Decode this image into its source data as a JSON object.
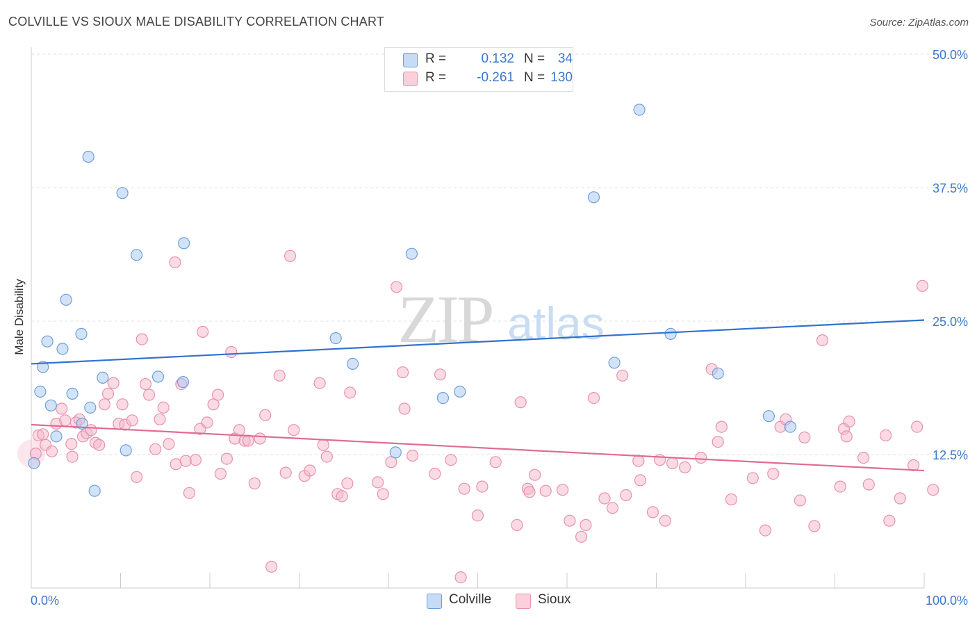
{
  "header": {
    "title": "COLVILLE VS SIOUX MALE DISABILITY CORRELATION CHART",
    "source": "Source: ZipAtlas.com"
  },
  "watermark": {
    "zip": "ZIP",
    "atlas": "atlas"
  },
  "legend": {
    "r_label": "R =",
    "n_label": "N =",
    "rows": [
      {
        "r": "0.132",
        "n": "34",
        "color": "#a8c8f0"
      },
      {
        "r": "-0.261",
        "n": "130",
        "color": "#f5b8ca"
      }
    ]
  },
  "bottom_legend": [
    {
      "label": "Colville",
      "color": "#a8c8f0"
    },
    {
      "label": "Sioux",
      "color": "#f5b8ca"
    }
  ],
  "chart_data": {
    "type": "scatter",
    "title": "COLVILLE VS SIOUX MALE DISABILITY CORRELATION CHART",
    "xlabel": "",
    "ylabel": "Male Disability",
    "xlim": [
      0,
      100
    ],
    "ylim": [
      0,
      50
    ],
    "x_tick_labels": [
      "0.0%",
      "100.0%"
    ],
    "y_ticks": [
      12.5,
      25.0,
      37.5,
      50.0
    ],
    "y_tick_labels": [
      "12.5%",
      "25.0%",
      "37.5%",
      "50.0%"
    ],
    "grid": true,
    "legend_position": "top-center",
    "series": [
      {
        "name": "Colville",
        "color": "#a8c8f0",
        "stroke": "#6d9edb",
        "trend_color": "#2f72cf",
        "trend": [
          [
            0,
            21.0
          ],
          [
            100,
            25.1
          ]
        ],
        "points": [
          [
            0.3,
            11.7
          ],
          [
            1.0,
            18.4
          ],
          [
            1.3,
            20.7
          ],
          [
            1.8,
            23.1
          ],
          [
            2.2,
            17.1
          ],
          [
            2.8,
            14.2
          ],
          [
            3.5,
            22.4
          ],
          [
            3.9,
            27.0
          ],
          [
            4.6,
            18.2
          ],
          [
            5.6,
            23.8
          ],
          [
            5.7,
            15.4
          ],
          [
            6.4,
            40.4
          ],
          [
            6.6,
            16.9
          ],
          [
            7.1,
            9.1
          ],
          [
            8.0,
            19.7
          ],
          [
            10.2,
            37.0
          ],
          [
            10.6,
            12.9
          ],
          [
            11.8,
            31.2
          ],
          [
            14.2,
            19.8
          ],
          [
            17.0,
            19.3
          ],
          [
            17.1,
            32.3
          ],
          [
            34.1,
            23.4
          ],
          [
            36.0,
            21.0
          ],
          [
            40.8,
            12.7
          ],
          [
            42.6,
            31.3
          ],
          [
            46.1,
            17.8
          ],
          [
            48.0,
            18.4
          ],
          [
            63.0,
            36.6
          ],
          [
            65.3,
            21.1
          ],
          [
            68.1,
            44.8
          ],
          [
            71.6,
            23.8
          ],
          [
            76.9,
            20.1
          ],
          [
            82.6,
            16.1
          ],
          [
            85.0,
            15.1
          ]
        ]
      },
      {
        "name": "Sioux",
        "color": "#f5b8ca",
        "stroke": "#e891ad",
        "trend_color": "#e06b95",
        "trend": [
          [
            0,
            15.3
          ],
          [
            100,
            11.0
          ]
        ],
        "points": [
          [
            0.5,
            12.6
          ],
          [
            0.8,
            14.3
          ],
          [
            1.3,
            14.4
          ],
          [
            1.6,
            13.4
          ],
          [
            2.3,
            12.8
          ],
          [
            2.8,
            15.4
          ],
          [
            3.4,
            16.8
          ],
          [
            3.8,
            15.7
          ],
          [
            4.5,
            13.5
          ],
          [
            4.6,
            12.3
          ],
          [
            5.0,
            15.5
          ],
          [
            5.4,
            15.8
          ],
          [
            5.8,
            14.2
          ],
          [
            6.2,
            14.5
          ],
          [
            6.7,
            14.8
          ],
          [
            7.2,
            13.6
          ],
          [
            7.6,
            13.4
          ],
          [
            8.2,
            17.2
          ],
          [
            8.6,
            18.2
          ],
          [
            9.2,
            19.2
          ],
          [
            9.8,
            15.4
          ],
          [
            10.2,
            17.2
          ],
          [
            10.5,
            15.3
          ],
          [
            11.3,
            15.7
          ],
          [
            11.8,
            10.4
          ],
          [
            12.4,
            23.3
          ],
          [
            12.8,
            19.1
          ],
          [
            13.2,
            18.1
          ],
          [
            13.9,
            13.0
          ],
          [
            14.4,
            15.8
          ],
          [
            14.8,
            16.9
          ],
          [
            15.4,
            13.5
          ],
          [
            16.1,
            30.5
          ],
          [
            16.2,
            11.6
          ],
          [
            16.8,
            19.1
          ],
          [
            17.3,
            11.9
          ],
          [
            17.7,
            8.9
          ],
          [
            18.4,
            12.0
          ],
          [
            18.9,
            14.9
          ],
          [
            19.2,
            24.0
          ],
          [
            19.7,
            15.5
          ],
          [
            20.4,
            17.2
          ],
          [
            20.9,
            18.1
          ],
          [
            21.2,
            10.7
          ],
          [
            21.9,
            12.1
          ],
          [
            22.4,
            22.1
          ],
          [
            22.8,
            14.0
          ],
          [
            23.3,
            14.8
          ],
          [
            23.9,
            13.8
          ],
          [
            24.3,
            13.8
          ],
          [
            25.0,
            9.8
          ],
          [
            25.6,
            14.0
          ],
          [
            26.2,
            16.2
          ],
          [
            26.9,
            2.0
          ],
          [
            27.8,
            19.9
          ],
          [
            28.5,
            10.8
          ],
          [
            29.0,
            31.1
          ],
          [
            29.4,
            14.8
          ],
          [
            30.6,
            10.5
          ],
          [
            31.2,
            11.0
          ],
          [
            32.3,
            19.2
          ],
          [
            32.7,
            13.4
          ],
          [
            33.1,
            12.3
          ],
          [
            34.3,
            8.8
          ],
          [
            34.8,
            8.6
          ],
          [
            35.4,
            9.8
          ],
          [
            35.7,
            18.3
          ],
          [
            38.8,
            9.9
          ],
          [
            39.4,
            8.8
          ],
          [
            40.3,
            11.8
          ],
          [
            40.9,
            28.2
          ],
          [
            41.6,
            20.2
          ],
          [
            41.8,
            16.8
          ],
          [
            42.7,
            12.4
          ],
          [
            45.2,
            10.7
          ],
          [
            45.8,
            20.0
          ],
          [
            47.0,
            12.0
          ],
          [
            48.1,
            1.0
          ],
          [
            48.5,
            9.3
          ],
          [
            50.0,
            6.8
          ],
          [
            50.5,
            9.5
          ],
          [
            52.0,
            11.8
          ],
          [
            54.4,
            5.9
          ],
          [
            54.8,
            17.4
          ],
          [
            55.6,
            9.3
          ],
          [
            55.8,
            9.0
          ],
          [
            56.4,
            10.6
          ],
          [
            57.6,
            9.1
          ],
          [
            59.5,
            9.2
          ],
          [
            60.3,
            6.3
          ],
          [
            61.6,
            4.8
          ],
          [
            62.1,
            5.9
          ],
          [
            63.0,
            17.8
          ],
          [
            64.2,
            8.4
          ],
          [
            65.1,
            7.5
          ],
          [
            66.2,
            19.9
          ],
          [
            66.6,
            8.7
          ],
          [
            68.0,
            11.9
          ],
          [
            68.2,
            10.1
          ],
          [
            69.6,
            7.1
          ],
          [
            70.4,
            12.0
          ],
          [
            71.0,
            6.3
          ],
          [
            71.8,
            11.7
          ],
          [
            73.2,
            11.3
          ],
          [
            75.0,
            12.2
          ],
          [
            76.2,
            20.5
          ],
          [
            76.9,
            13.7
          ],
          [
            77.3,
            15.1
          ],
          [
            78.4,
            8.3
          ],
          [
            80.8,
            10.3
          ],
          [
            82.2,
            5.4
          ],
          [
            83.1,
            10.7
          ],
          [
            83.9,
            15.1
          ],
          [
            84.5,
            15.8
          ],
          [
            86.1,
            8.2
          ],
          [
            86.6,
            14.1
          ],
          [
            87.7,
            5.8
          ],
          [
            88.6,
            23.2
          ],
          [
            90.6,
            9.5
          ],
          [
            91.0,
            14.9
          ],
          [
            91.3,
            14.2
          ],
          [
            91.6,
            15.6
          ],
          [
            93.2,
            12.2
          ],
          [
            93.8,
            9.7
          ],
          [
            95.7,
            14.3
          ],
          [
            96.1,
            6.3
          ],
          [
            97.3,
            8.4
          ],
          [
            98.8,
            11.5
          ],
          [
            99.2,
            15.1
          ],
          [
            99.8,
            28.3
          ],
          [
            101.0,
            9.2
          ]
        ]
      }
    ]
  }
}
